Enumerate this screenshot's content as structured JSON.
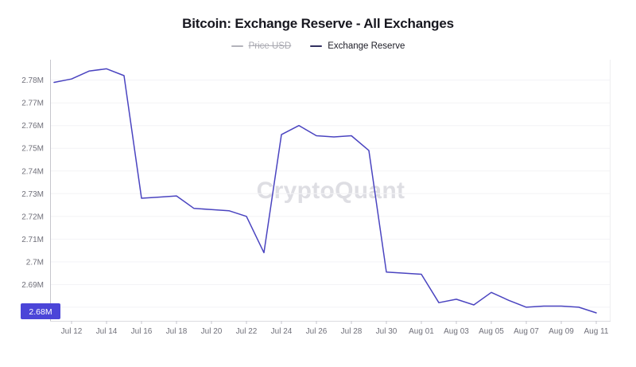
{
  "title": "Bitcoin: Exchange Reserve - All Exchanges",
  "legend": {
    "items": [
      {
        "label": "Price USD",
        "disabled": true,
        "color": "#b3b3bb"
      },
      {
        "label": "Exchange Reserve",
        "disabled": false,
        "color": "#323060"
      }
    ]
  },
  "watermark": "CryptoQuant",
  "current_value_badge": {
    "text": "2.68M",
    "color": "#4b45d8"
  },
  "colors": {
    "line": "#4a44c0",
    "grid": "#f3f3f6",
    "axis_left": "#c5c5cc",
    "axis_bottom": "#dbdbe0",
    "axis_right": "#eeeef1",
    "tick_text": "#70707a",
    "badge_text": "#ffffff"
  },
  "chart_data": {
    "type": "line",
    "title": "Bitcoin: Exchange Reserve - All Exchanges",
    "xlabel": "",
    "ylabel": "",
    "x": [
      "Jul 11",
      "Jul 12",
      "Jul 13",
      "Jul 14",
      "Jul 15",
      "Jul 16",
      "Jul 17",
      "Jul 18",
      "Jul 19",
      "Jul 20",
      "Jul 21",
      "Jul 22",
      "Jul 23",
      "Jul 24",
      "Jul 25",
      "Jul 26",
      "Jul 27",
      "Jul 28",
      "Jul 29",
      "Jul 30",
      "Jul 31",
      "Aug 01",
      "Aug 02",
      "Aug 03",
      "Aug 04",
      "Aug 05",
      "Aug 06",
      "Aug 07",
      "Aug 08",
      "Aug 09",
      "Aug 10",
      "Aug 11"
    ],
    "series": [
      {
        "name": "Exchange Reserve",
        "color": "#4a44c0",
        "values": [
          2.779,
          2.7805,
          2.784,
          2.785,
          2.782,
          2.728,
          2.7285,
          2.729,
          2.7235,
          2.723,
          2.7225,
          2.72,
          2.704,
          2.756,
          2.76,
          2.7555,
          2.755,
          2.7555,
          2.749,
          2.6955,
          2.695,
          2.6945,
          2.682,
          2.6835,
          2.681,
          2.6865,
          2.683,
          2.68,
          2.6805,
          2.6805,
          2.68,
          2.6775
        ]
      }
    ],
    "hidden_series": [
      "Price USD"
    ],
    "x_tick_labels": [
      "Jul 12",
      "Jul 14",
      "Jul 16",
      "Jul 18",
      "Jul 20",
      "Jul 22",
      "Jul 24",
      "Jul 26",
      "Jul 28",
      "Jul 30",
      "Aug 01",
      "Aug 03",
      "Aug 05",
      "Aug 07",
      "Aug 09",
      "Aug 11"
    ],
    "y_tick_labels": [
      "2.78M",
      "2.77M",
      "2.76M",
      "2.75M",
      "2.74M",
      "2.73M",
      "2.72M",
      "2.71M",
      "2.7M",
      "2.69M",
      "2.68M"
    ],
    "y_ticks": [
      2.78,
      2.77,
      2.76,
      2.75,
      2.74,
      2.73,
      2.72,
      2.71,
      2.7,
      2.69,
      2.68
    ],
    "ylim": [
      2.674,
      2.789
    ],
    "grid": "horizontal",
    "legend_position": "top",
    "last_value_label": "2.68M"
  }
}
